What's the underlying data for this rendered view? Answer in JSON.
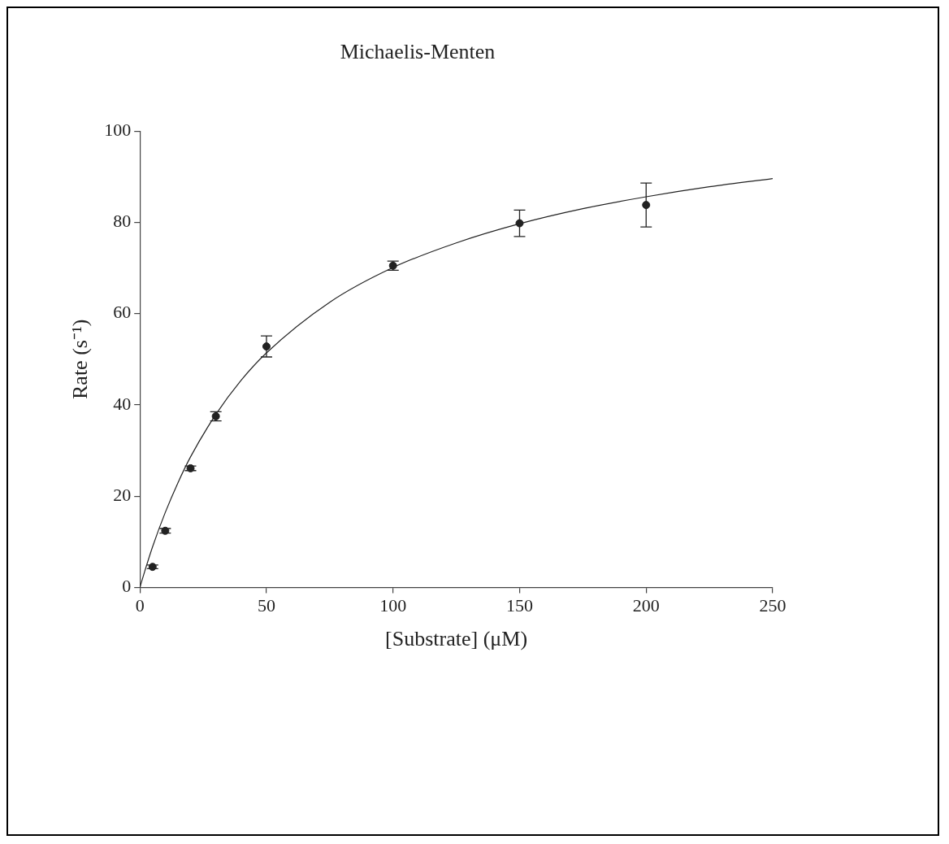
{
  "chart_data": {
    "type": "scatter",
    "title": "Michaelis-Menten",
    "xlabel": "[Substrate] (μM)",
    "ylabel": "Rate (s⁻¹)",
    "x": [
      5,
      10,
      20,
      30,
      50,
      100,
      150,
      200
    ],
    "series": [
      {
        "type": "scatter",
        "marker": "circle",
        "color": "#222222",
        "values": [
          4.5,
          12.4,
          26.1,
          37.5,
          52.8,
          70.5,
          79.8,
          83.8
        ],
        "errors": [
          0.4,
          0.5,
          0.5,
          1,
          2.3,
          1,
          2.9,
          4.8
        ]
      },
      {
        "type": "line",
        "marker": "none",
        "color": "#222222",
        "x": [
          0,
          2,
          5,
          10,
          15,
          20,
          30,
          40,
          50,
          75,
          100,
          125,
          150,
          175,
          200,
          225,
          250
        ],
        "values": [
          0,
          3.7,
          8.9,
          16.4,
          22.9,
          28.6,
          37.9,
          45.4,
          51.4,
          62.5,
          70.1,
          75.5,
          79.7,
          83.0,
          85.6,
          87.8,
          89.6
        ]
      }
    ],
    "xlim": [
      0,
      250
    ],
    "xticks": [
      0,
      50,
      100,
      150,
      200,
      250
    ],
    "ylim": [
      0,
      100
    ],
    "yticks": [
      0,
      20,
      40,
      60,
      80,
      100
    ],
    "grid": false,
    "legend": false,
    "line_style": "solid"
  }
}
